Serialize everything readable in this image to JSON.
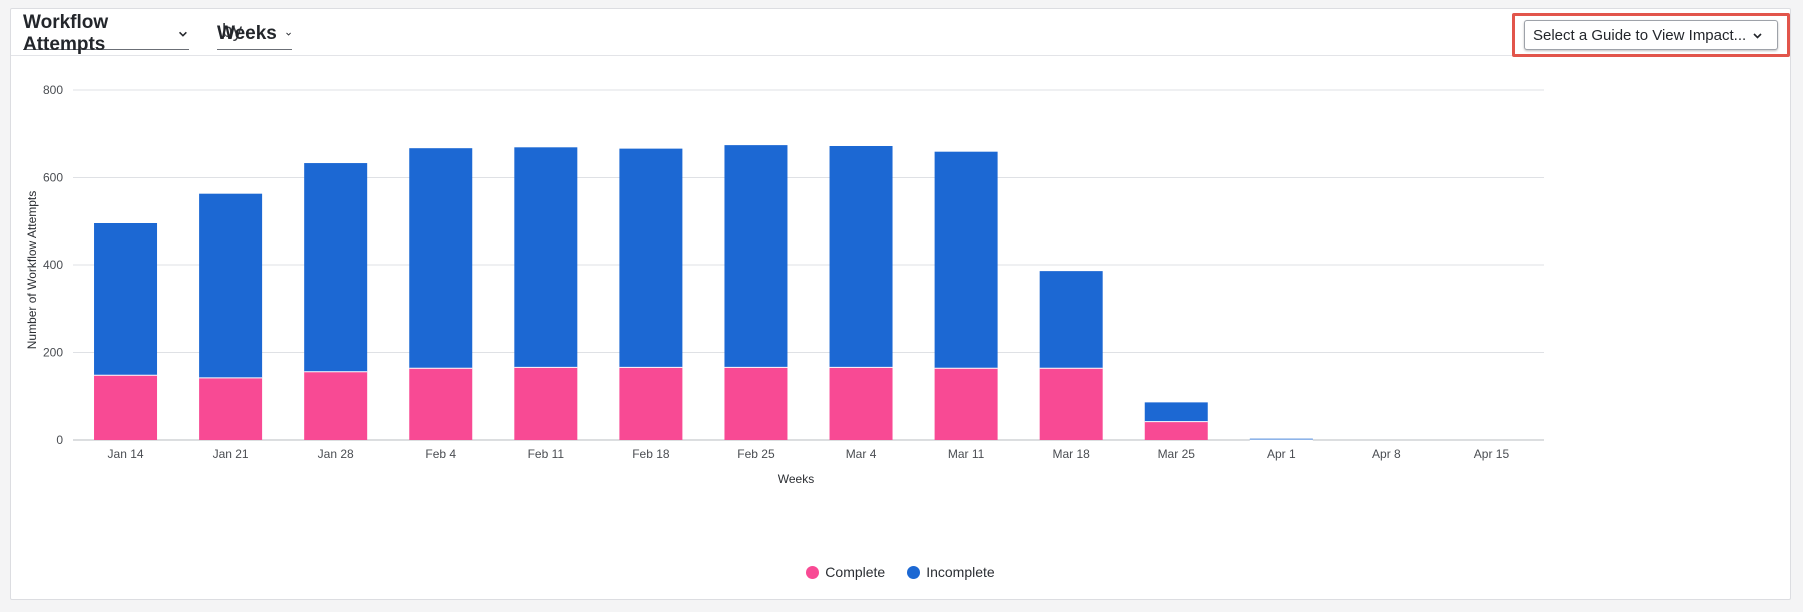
{
  "header": {
    "metric_label": "Workflow Attempts",
    "by_label": "by",
    "period_label": "Weeks",
    "guide_placeholder": "Select a Guide to View Impact..."
  },
  "colors": {
    "complete": "#f84a94",
    "incomplete": "#1c68d3",
    "highlight": "#e2554b"
  },
  "chart_data": {
    "type": "bar",
    "stacked": true,
    "categories": [
      "Jan 14",
      "Jan 21",
      "Jan 28",
      "Feb 4",
      "Feb 11",
      "Feb 18",
      "Feb 25",
      "Mar 4",
      "Mar 11",
      "Mar 18",
      "Mar 25",
      "Apr 1",
      "Apr 8",
      "Apr 15"
    ],
    "series": [
      {
        "name": "Complete",
        "values": [
          148,
          142,
          156,
          164,
          166,
          166,
          166,
          166,
          164,
          164,
          42,
          0,
          0,
          0
        ]
      },
      {
        "name": "Incomplete",
        "values": [
          348,
          421,
          477,
          503,
          503,
          500,
          508,
          506,
          495,
          222,
          44,
          3,
          0,
          0
        ]
      }
    ],
    "xlabel": "Weeks",
    "ylabel": "Number of Workflow Attempts",
    "ylim": [
      0,
      800
    ],
    "yticks": [
      0,
      200,
      400,
      600,
      800
    ],
    "grid": true,
    "legend_position": "bottom-center"
  }
}
